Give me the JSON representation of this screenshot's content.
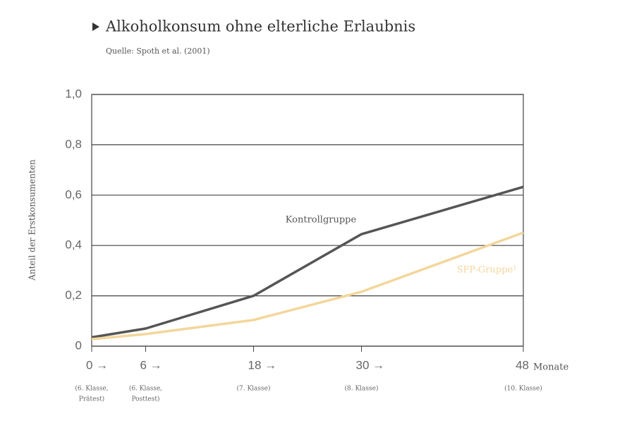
{
  "chart_data": {
    "type": "line",
    "title": "Alkoholkonsum ohne elterliche Erlaubnis",
    "subtitle": "Quelle: Spoth et al. (2001)",
    "y_label": "Anteil der Erstkonsumenten",
    "x_label": "Monate",
    "x": [
      0,
      6,
      18,
      30,
      48
    ],
    "series": [
      {
        "name": "Kontrollgruppe",
        "color": "#555555",
        "values": [
          0.035,
          0.07,
          0.2,
          0.445,
          0.633
        ]
      },
      {
        "name": "SFP-Gruppe¹",
        "color": "#f3d69b",
        "values": [
          0.028,
          0.048,
          0.104,
          0.216,
          0.451
        ]
      }
    ],
    "xlim": [
      0,
      48
    ],
    "xticks": [
      {
        "value": 0,
        "label": "0 →"
      },
      {
        "value": 6,
        "label": "6 →"
      },
      {
        "value": 18,
        "label": "18 →"
      },
      {
        "value": 30,
        "label": "30 →"
      },
      48
    ],
    "x_tick_notes": [
      [
        "(6. Klasse,",
        "Prätest)"
      ],
      [
        "(6. Klasse,",
        "Posttest)"
      ],
      [
        "(7. Klasse)"
      ],
      [
        "(8. Klasse)"
      ],
      [
        "(10. Klasse)"
      ]
    ],
    "ylim": [
      0,
      1
    ],
    "yticks": [
      0,
      {
        "value": 0.2,
        "label": "0,2"
      },
      {
        "value": 0.4,
        "label": "0,4"
      },
      {
        "value": 0.6,
        "label": "0,6"
      },
      {
        "value": 0.8,
        "label": "0,8"
      },
      {
        "value": 1,
        "label": "1,0"
      }
    ],
    "grid": true
  }
}
